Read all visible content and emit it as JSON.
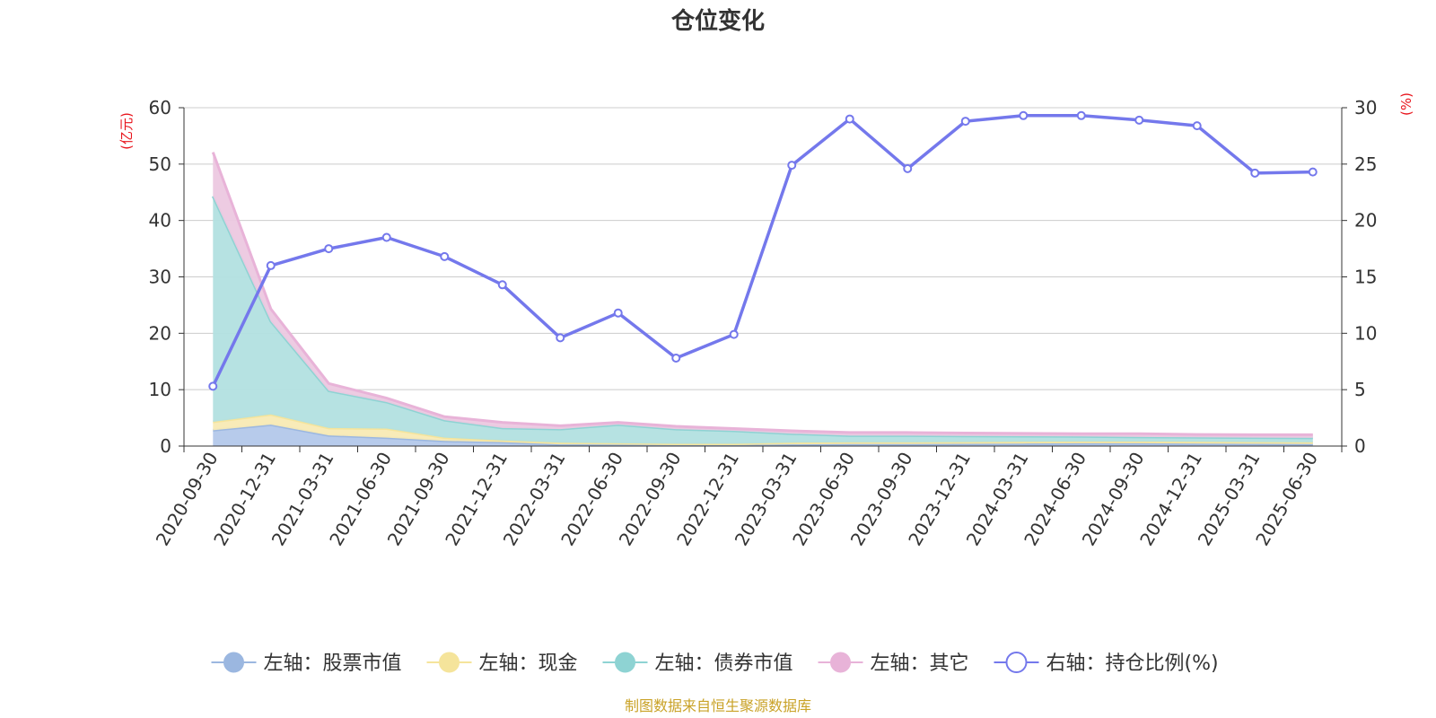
{
  "chart_data": {
    "type": "area",
    "title": "仓位变化",
    "left_axis_unit": "(亿元)",
    "right_axis_unit": "(%)",
    "categories": [
      "2020-09-30",
      "2020-12-31",
      "2021-03-31",
      "2021-06-30",
      "2021-09-30",
      "2021-12-31",
      "2022-03-31",
      "2022-06-30",
      "2022-09-30",
      "2022-12-31",
      "2023-03-31",
      "2023-06-30",
      "2023-09-30",
      "2023-12-31",
      "2024-03-31",
      "2024-06-30",
      "2024-09-30",
      "2024-12-31",
      "2025-03-31",
      "2025-06-30"
    ],
    "left_ylim": [
      0,
      60
    ],
    "left_ticks": [
      0,
      10,
      20,
      30,
      40,
      50,
      60
    ],
    "right_ylim": [
      0,
      30
    ],
    "right_ticks": [
      0,
      5,
      10,
      15,
      20,
      25,
      30
    ],
    "grid": true,
    "legend_position": "bottom",
    "stacked_series": [
      {
        "name": "左轴：股票市值",
        "color": "#9bb7e0",
        "fill": "#b3c8ea",
        "values": [
          2.8,
          3.8,
          1.9,
          1.5,
          0.9,
          0.7,
          0.3,
          0.3,
          0.2,
          0.2,
          0.3,
          0.35,
          0.35,
          0.4,
          0.45,
          0.5,
          0.5,
          0.45,
          0.4,
          0.35
        ]
      },
      {
        "name": "左轴：现金",
        "color": "#f5e49b",
        "fill": "#f8eab4",
        "values": [
          1.5,
          1.8,
          1.3,
          1.6,
          0.6,
          0.3,
          0.3,
          0.2,
          0.2,
          0.2,
          0.3,
          0.3,
          0.3,
          0.3,
          0.3,
          0.3,
          0.3,
          0.3,
          0.3,
          0.3
        ]
      },
      {
        "name": "左轴：债券市值",
        "color": "#8ed3d3",
        "fill": "#b2e0e0",
        "values": [
          40.0,
          16.5,
          6.6,
          4.7,
          3.1,
          2.2,
          2.4,
          3.3,
          2.6,
          2.3,
          1.6,
          1.2,
          1.2,
          1.1,
          1.0,
          0.9,
          0.8,
          0.8,
          0.8,
          0.8
        ]
      },
      {
        "name": "左轴：其它",
        "color": "#e8b3d8",
        "fill": "#ecc8e0",
        "values": [
          7.8,
          2.2,
          1.3,
          0.7,
          0.6,
          1.0,
          0.6,
          0.4,
          0.5,
          0.4,
          0.5,
          0.55,
          0.55,
          0.5,
          0.5,
          0.5,
          0.6,
          0.5,
          0.5,
          0.55
        ]
      }
    ],
    "line_series": {
      "name": "右轴：持仓比例(%)",
      "color": "#7478ec",
      "values": [
        5.3,
        16.0,
        17.5,
        18.5,
        16.8,
        14.3,
        9.6,
        11.8,
        7.8,
        9.9,
        24.9,
        29.0,
        24.6,
        28.8,
        29.3,
        29.3,
        28.9,
        28.4,
        24.2,
        24.3
      ]
    },
    "source_note": "制图数据来自恒生聚源数据库"
  }
}
